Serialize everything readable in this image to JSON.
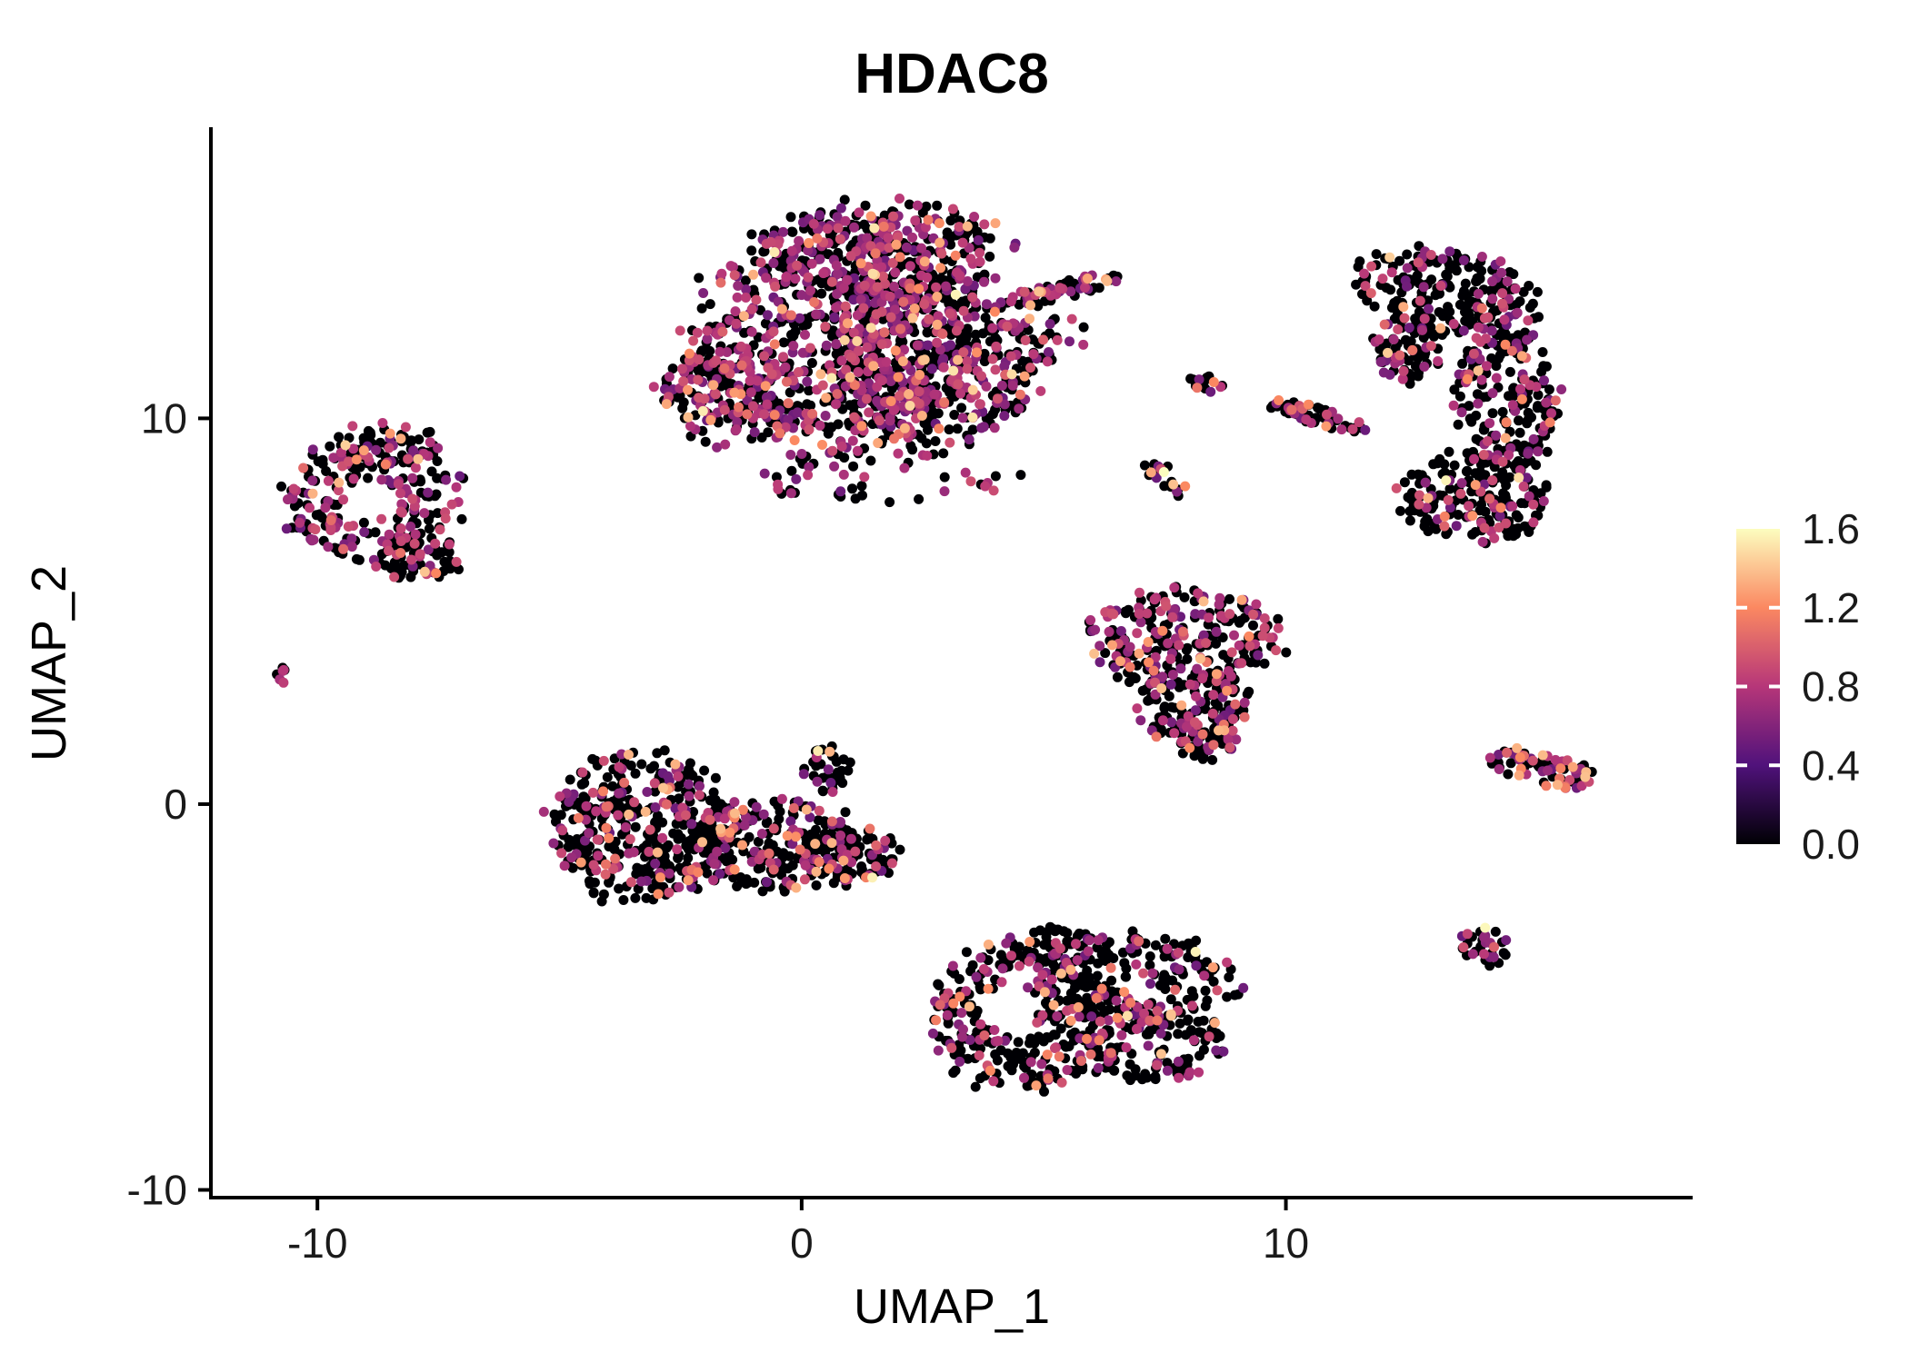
{
  "chart_data": {
    "type": "scatter",
    "title": "HDAC8",
    "xlabel": "UMAP_1",
    "ylabel": "UMAP_2",
    "xlim": [
      -12.2,
      18.4
    ],
    "ylim": [
      -10.2,
      17.5
    ],
    "xticks": [
      -10,
      0,
      10
    ],
    "yticks": [
      -10,
      0,
      10
    ],
    "grid": false,
    "legend_position": "right",
    "point_radius_px": 5.5,
    "seed": 42,
    "color_scale": {
      "label_values": [
        0.0,
        0.4,
        0.8,
        1.2,
        1.6
      ],
      "min": 0.0,
      "max": 1.6,
      "palette": "magma",
      "stops": [
        [
          0.0,
          "#000004"
        ],
        [
          0.25,
          "#50127b"
        ],
        [
          0.5,
          "#b63679"
        ],
        [
          0.75,
          "#fb8861"
        ],
        [
          1.0,
          "#fcfdbf"
        ]
      ]
    },
    "clusters": [
      {
        "name": "main-top",
        "pos_frac": 0.5,
        "hot_frac": 0.12,
        "blobs": [
          {
            "cx": 0.6,
            "cy": 12.0,
            "rx": 2.9,
            "ry": 3.0,
            "n": 720
          },
          {
            "cx": 2.7,
            "cy": 11.4,
            "rx": 2.2,
            "ry": 2.2,
            "n": 420
          },
          {
            "cx": 1.8,
            "cy": 14.3,
            "rx": 2.5,
            "ry": 1.3,
            "n": 260
          },
          {
            "cx": -1.7,
            "cy": 10.6,
            "rx": 1.3,
            "ry": 1.3,
            "n": 130
          },
          {
            "cx": 5.3,
            "cy": 13.3,
            "rx": 1.4,
            "ry": 0.26,
            "rot": 18,
            "n": 70
          },
          {
            "cx": 4.9,
            "cy": 12.2,
            "rx": 1.1,
            "ry": 0.8,
            "n": 30
          },
          {
            "cx": 1.5,
            "cy": 8.5,
            "rx": 3.0,
            "ry": 0.7,
            "n": 45
          }
        ]
      },
      {
        "name": "left",
        "pos_frac": 0.42,
        "hot_frac": 0.12,
        "blobs": [
          {
            "cx": -8.9,
            "cy": 7.9,
            "rx": 1.9,
            "ry": 1.5,
            "n": 210,
            "hole": {
              "cx": -8.9,
              "cy": 7.9,
              "r": 0.55
            }
          },
          {
            "cx": -8.5,
            "cy": 9.3,
            "rx": 1.1,
            "ry": 0.6,
            "n": 60
          },
          {
            "cx": -7.9,
            "cy": 6.4,
            "rx": 0.9,
            "ry": 0.6,
            "n": 55
          }
        ]
      },
      {
        "name": "left-tiny",
        "pos_frac": 0.5,
        "hot_frac": 0.1,
        "blobs": [
          {
            "cx": -10.7,
            "cy": 3.3,
            "rx": 0.25,
            "ry": 0.22,
            "n": 7
          }
        ]
      },
      {
        "name": "mid-left",
        "pos_frac": 0.32,
        "hot_frac": 0.28,
        "blobs": [
          {
            "cx": -3.3,
            "cy": -0.6,
            "rx": 1.9,
            "ry": 1.9,
            "n": 400
          },
          {
            "cx": -0.6,
            "cy": -1.0,
            "rx": 1.7,
            "ry": 1.2,
            "n": 210
          },
          {
            "cx": 1.0,
            "cy": -1.3,
            "rx": 1.0,
            "ry": 0.8,
            "n": 90
          },
          {
            "cx": 0.5,
            "cy": 0.9,
            "rx": 0.5,
            "ry": 0.6,
            "n": 35
          }
        ]
      },
      {
        "name": "center-right",
        "pos_frac": 0.38,
        "hot_frac": 0.15,
        "blobs": [
          {
            "cx": 7.9,
            "cy": 4.3,
            "rx": 2.0,
            "ry": 1.3,
            "n": 240
          },
          {
            "cx": 8.1,
            "cy": 2.6,
            "rx": 1.3,
            "ry": 1.0,
            "n": 130
          },
          {
            "cx": 8.3,
            "cy": 1.6,
            "rx": 0.7,
            "ry": 0.5,
            "n": 45
          }
        ]
      },
      {
        "name": "bottom-center",
        "pos_frac": 0.33,
        "hot_frac": 0.2,
        "blobs": [
          {
            "cx": 4.5,
            "cy": -5.5,
            "rx": 1.8,
            "ry": 1.9,
            "n": 280,
            "hole": {
              "cx": 4.3,
              "cy": -5.3,
              "r": 0.6
            }
          },
          {
            "cx": 7.0,
            "cy": -4.6,
            "rx": 2.0,
            "ry": 1.2,
            "n": 190
          },
          {
            "cx": 7.3,
            "cy": -6.3,
            "rx": 1.5,
            "ry": 1.0,
            "n": 130
          },
          {
            "cx": 5.3,
            "cy": -3.7,
            "rx": 1.1,
            "ry": 0.5,
            "n": 60
          }
        ]
      },
      {
        "name": "right-crescent",
        "pos_frac": 0.3,
        "hot_frac": 0.15,
        "blobs": [
          {
            "cx": 13.3,
            "cy": 13.3,
            "rx": 1.9,
            "ry": 1.1,
            "rot": -12,
            "n": 210
          },
          {
            "cx": 14.6,
            "cy": 10.6,
            "rx": 1.05,
            "ry": 1.9,
            "n": 190
          },
          {
            "cx": 13.9,
            "cy": 7.9,
            "rx": 1.5,
            "ry": 1.2,
            "n": 190
          },
          {
            "cx": 12.5,
            "cy": 11.9,
            "rx": 0.7,
            "ry": 1.0,
            "n": 80
          }
        ]
      },
      {
        "name": "small-pair",
        "pos_frac": 0.5,
        "hot_frac": 0.3,
        "blobs": [
          {
            "cx": 8.4,
            "cy": 10.9,
            "rx": 0.4,
            "ry": 0.32,
            "n": 16
          }
        ]
      },
      {
        "name": "small-slant",
        "pos_frac": 0.45,
        "hot_frac": 0.3,
        "blobs": [
          {
            "cx": 10.65,
            "cy": 10.05,
            "rx": 1.15,
            "ry": 0.24,
            "rot": -20,
            "n": 55
          }
        ]
      },
      {
        "name": "small-mid",
        "pos_frac": 0.4,
        "hot_frac": 0.2,
        "blobs": [
          {
            "cx": 7.3,
            "cy": 8.7,
            "rx": 0.32,
            "ry": 0.26,
            "n": 11
          },
          {
            "cx": 7.7,
            "cy": 8.2,
            "rx": 0.26,
            "ry": 0.2,
            "n": 8
          }
        ]
      },
      {
        "name": "right-small",
        "pos_frac": 0.55,
        "hot_frac": 0.3,
        "blobs": [
          {
            "cx": 15.3,
            "cy": 0.9,
            "rx": 1.1,
            "ry": 0.45,
            "rot": -15,
            "n": 75
          }
        ]
      },
      {
        "name": "bottom-right-tiny",
        "pos_frac": 0.5,
        "hot_frac": 0.35,
        "blobs": [
          {
            "cx": 14.1,
            "cy": -3.7,
            "rx": 0.5,
            "ry": 0.55,
            "n": 30
          }
        ]
      }
    ]
  }
}
